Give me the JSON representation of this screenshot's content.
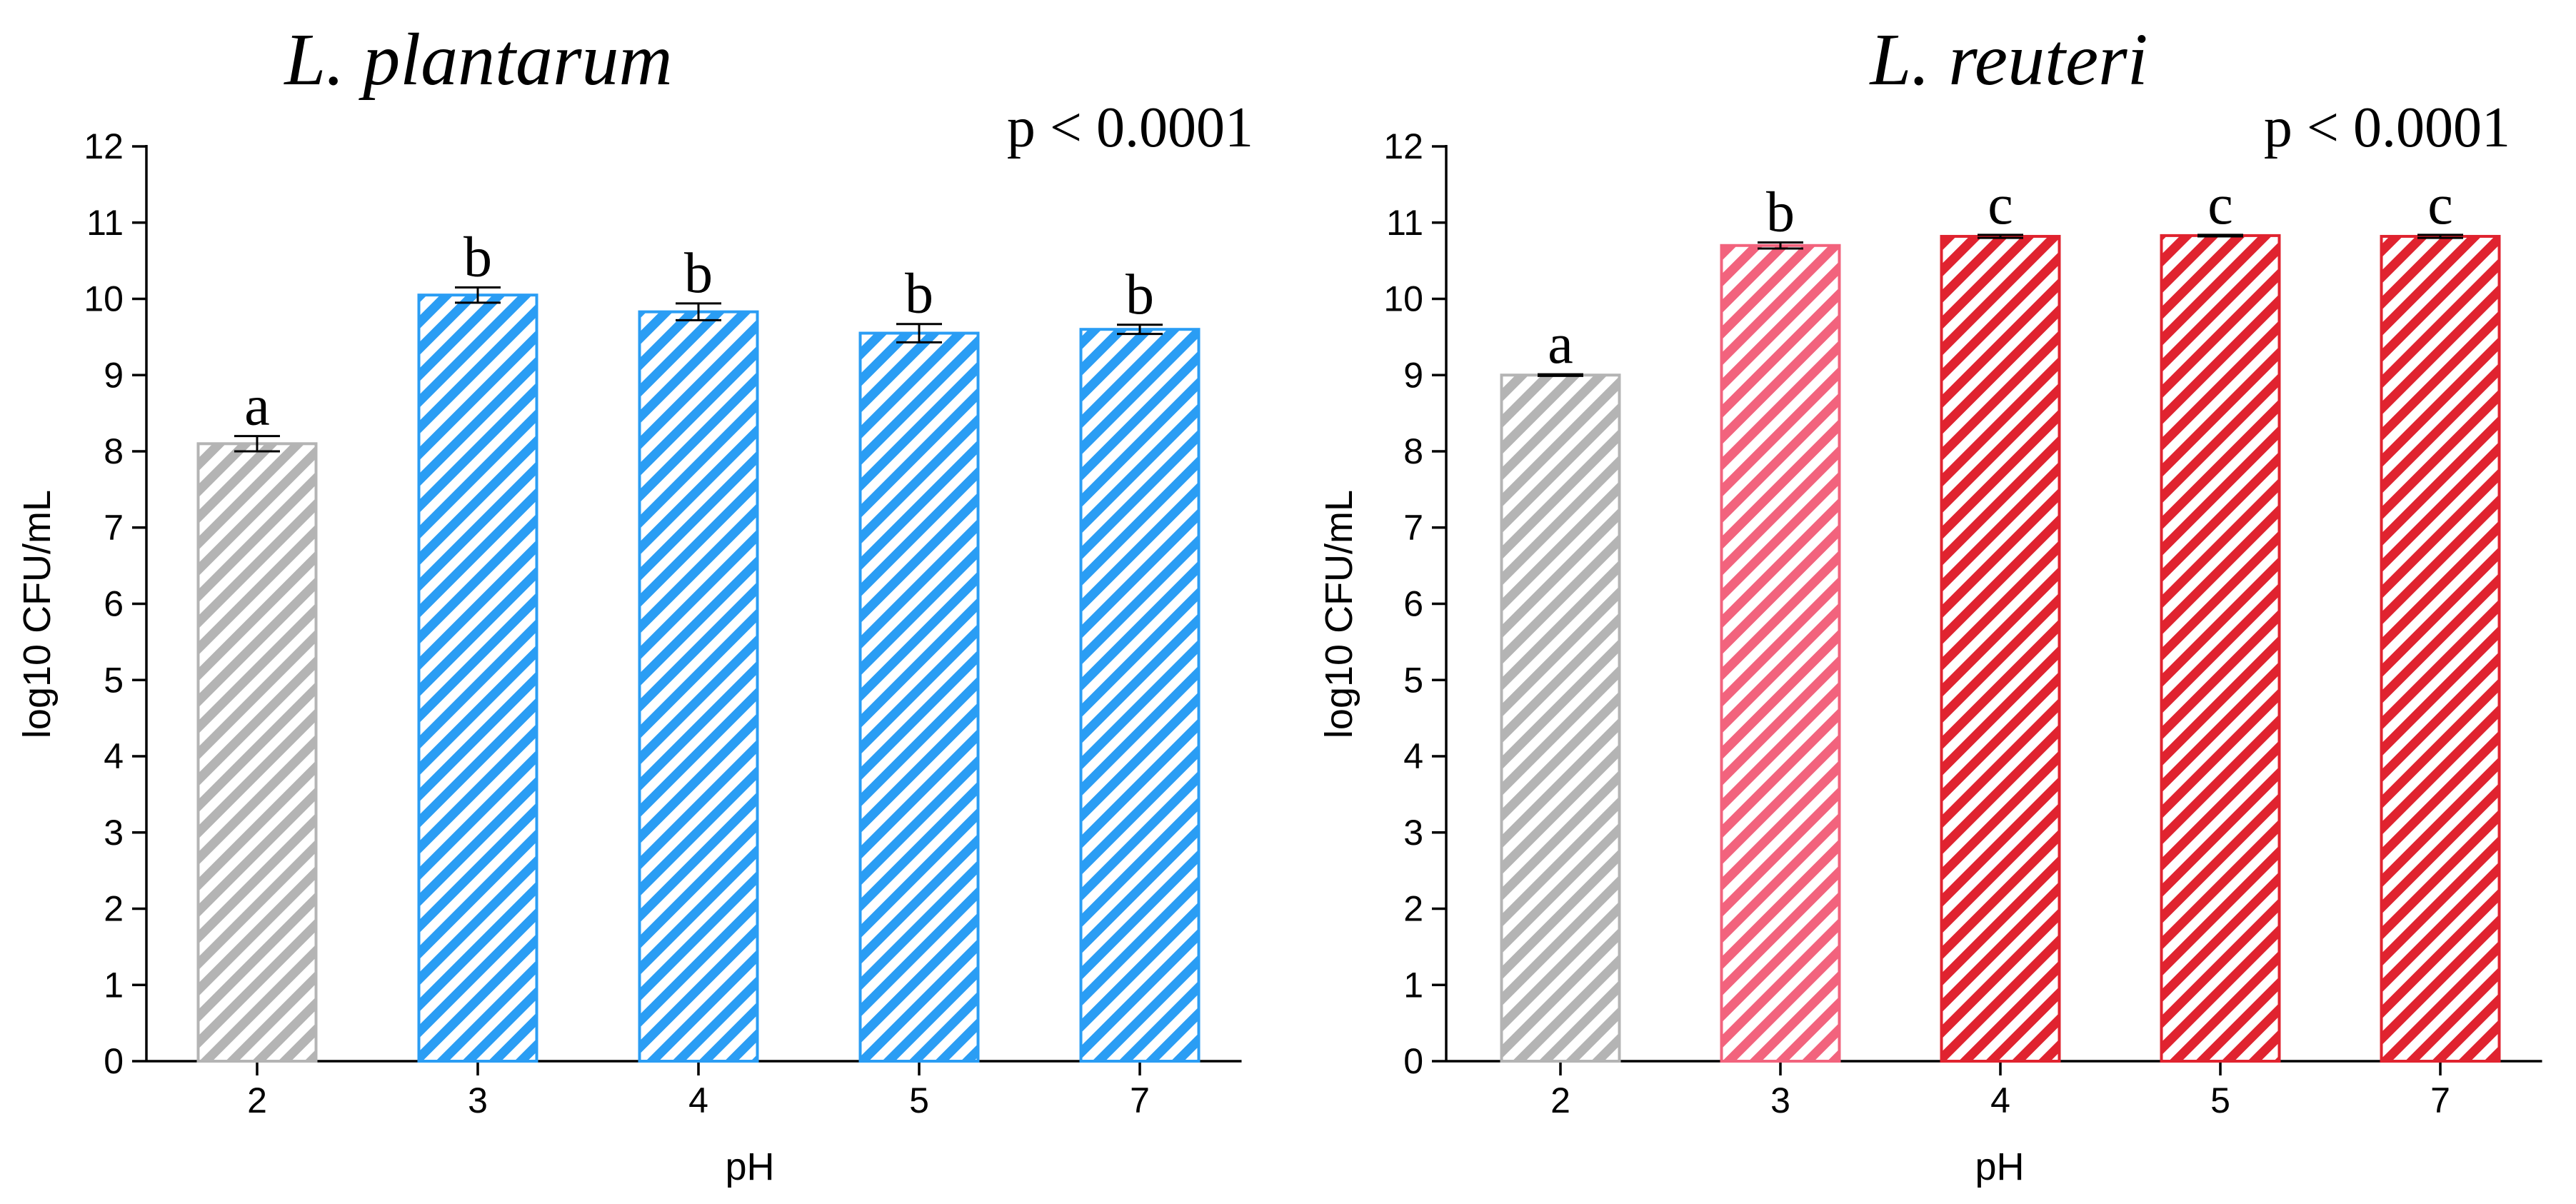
{
  "chart_data": [
    {
      "type": "bar",
      "title": "L. plantarum",
      "annotation": "p < 0.0001",
      "xlabel": "pH",
      "ylabel": "log10 CFU/mL",
      "ylim": [
        0,
        12
      ],
      "yticks": [
        "0",
        "1",
        "2",
        "3",
        "4",
        "5",
        "6",
        "7",
        "8",
        "9",
        "10",
        "11",
        "12"
      ],
      "categories": [
        "2",
        "3",
        "4",
        "5",
        "7"
      ],
      "values": [
        8.1,
        10.05,
        9.83,
        9.55,
        9.6
      ],
      "errors": [
        0.1,
        0.1,
        0.11,
        0.12,
        0.06
      ],
      "significance": [
        "a",
        "b",
        "b",
        "b",
        "b"
      ],
      "colors": [
        "#b4b4b4",
        "#2a9df4",
        "#2a9df4",
        "#2a9df4",
        "#2a9df4"
      ],
      "grid": false
    },
    {
      "type": "bar",
      "title": "L. reuteri",
      "annotation": "p < 0.0001",
      "xlabel": "pH",
      "ylabel": "log10 CFU/mL",
      "ylim": [
        0,
        12
      ],
      "yticks": [
        "0",
        "1",
        "2",
        "3",
        "4",
        "5",
        "6",
        "7",
        "8",
        "9",
        "10",
        "11",
        "12"
      ],
      "categories": [
        "2",
        "3",
        "4",
        "5",
        "7"
      ],
      "values": [
        9.0,
        10.7,
        10.82,
        10.83,
        10.82
      ],
      "errors": [
        0.01,
        0.04,
        0.02,
        0.01,
        0.02
      ],
      "significance": [
        "a",
        "b",
        "c",
        "c",
        "c"
      ],
      "colors": [
        "#b4b4b4",
        "#f2637d",
        "#e0232f",
        "#e0232f",
        "#e0232f"
      ],
      "grid": false
    }
  ]
}
